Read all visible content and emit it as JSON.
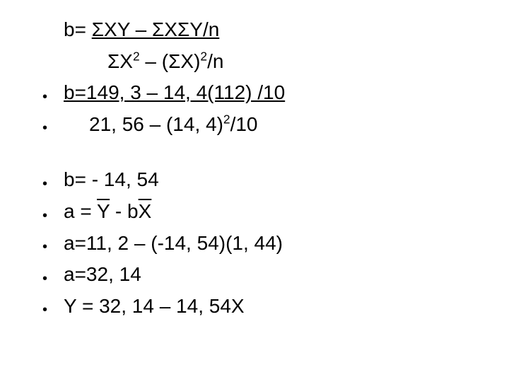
{
  "text_color": "#000000",
  "background_color": "#ffffff",
  "font_size_pt": 28,
  "bullet_char": "•",
  "lines": {
    "l1_pre": "b=  ",
    "l1_frac": "ΣXY – ΣXΣY/n",
    "l2_a": "ΣX",
    "l2_sup1": "2",
    "l2_b": " – ",
    "l2_c": "(ΣX)",
    "l2_sup2": "2",
    "l2_d": "/n",
    "l3": "b=149, 3 – 14, 4(112) /10",
    "l4_a": "21, 56 – ",
    "l4_b": "(14, 4)",
    "l4_sup": "2",
    "l4_c": "/10",
    "l5": "b= - 14, 54",
    "l6_a": "a = ",
    "l6_y": "Y",
    "l6_b": " - b",
    "l6_x": "X",
    "l7": "a=11, 2 – (-14, 54)(1, 44)",
    "l8": "a=32, 14",
    "l9": "Y = 32, 14 – 14, 54X"
  }
}
